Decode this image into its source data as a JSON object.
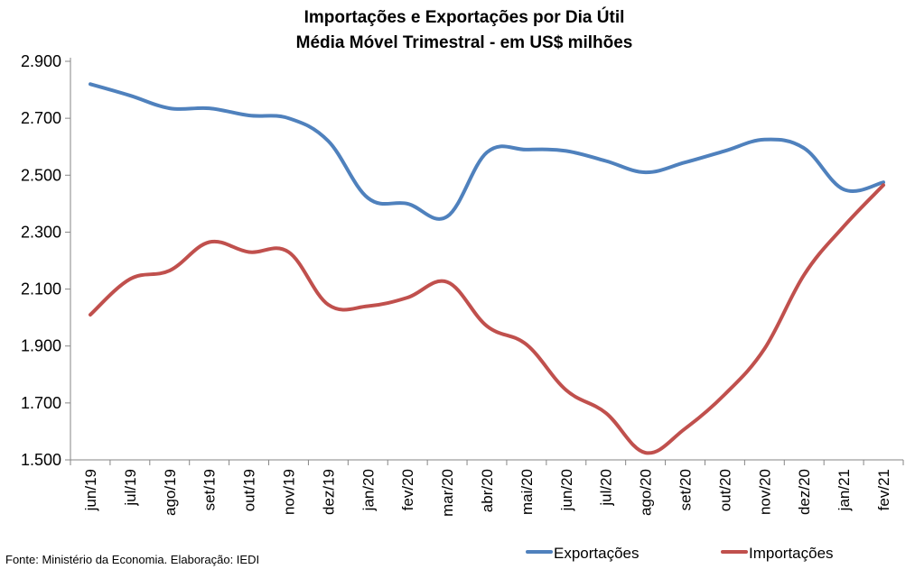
{
  "chart_data": {
    "type": "line",
    "title": "Importações e Exportações por Dia Útil",
    "subtitle": "Média Móvel Trimestral - em US$ milhões",
    "xlabel": "",
    "ylabel": "",
    "ylim": [
      1500,
      2900
    ],
    "yticks": [
      1500,
      1700,
      1900,
      2100,
      2300,
      2500,
      2700,
      2900
    ],
    "ytick_labels": [
      "1.500",
      "1.700",
      "1.900",
      "2.100",
      "2.300",
      "2.500",
      "2.700",
      "2.900"
    ],
    "categories": [
      "jun/19",
      "jul/19",
      "ago/19",
      "set/19",
      "out/19",
      "nov/19",
      "dez/19",
      "jan/20",
      "fev/20",
      "mar/20",
      "abr/20",
      "mai/20",
      "jun/20",
      "jul/20",
      "ago/20",
      "set/20",
      "out/20",
      "nov/20",
      "dez/20",
      "jan/21",
      "fev/21"
    ],
    "grid": false,
    "legend_position": "bottom",
    "series": [
      {
        "name": "Exportações",
        "color": "#4F81BD",
        "values": [
          2820,
          2780,
          2735,
          2735,
          2710,
          2700,
          2620,
          2420,
          2400,
          2355,
          2580,
          2590,
          2585,
          2550,
          2510,
          2545,
          2585,
          2625,
          2595,
          2450,
          2475
        ]
      },
      {
        "name": "Importações",
        "color": "#C0504D",
        "values": [
          2010,
          2135,
          2165,
          2265,
          2230,
          2230,
          2045,
          2040,
          2070,
          2125,
          1970,
          1905,
          1745,
          1665,
          1525,
          1610,
          1730,
          1890,
          2150,
          2320,
          2465
        ]
      }
    ],
    "source": "Fonte: Ministério da Economia. Elaboração: IEDI"
  }
}
